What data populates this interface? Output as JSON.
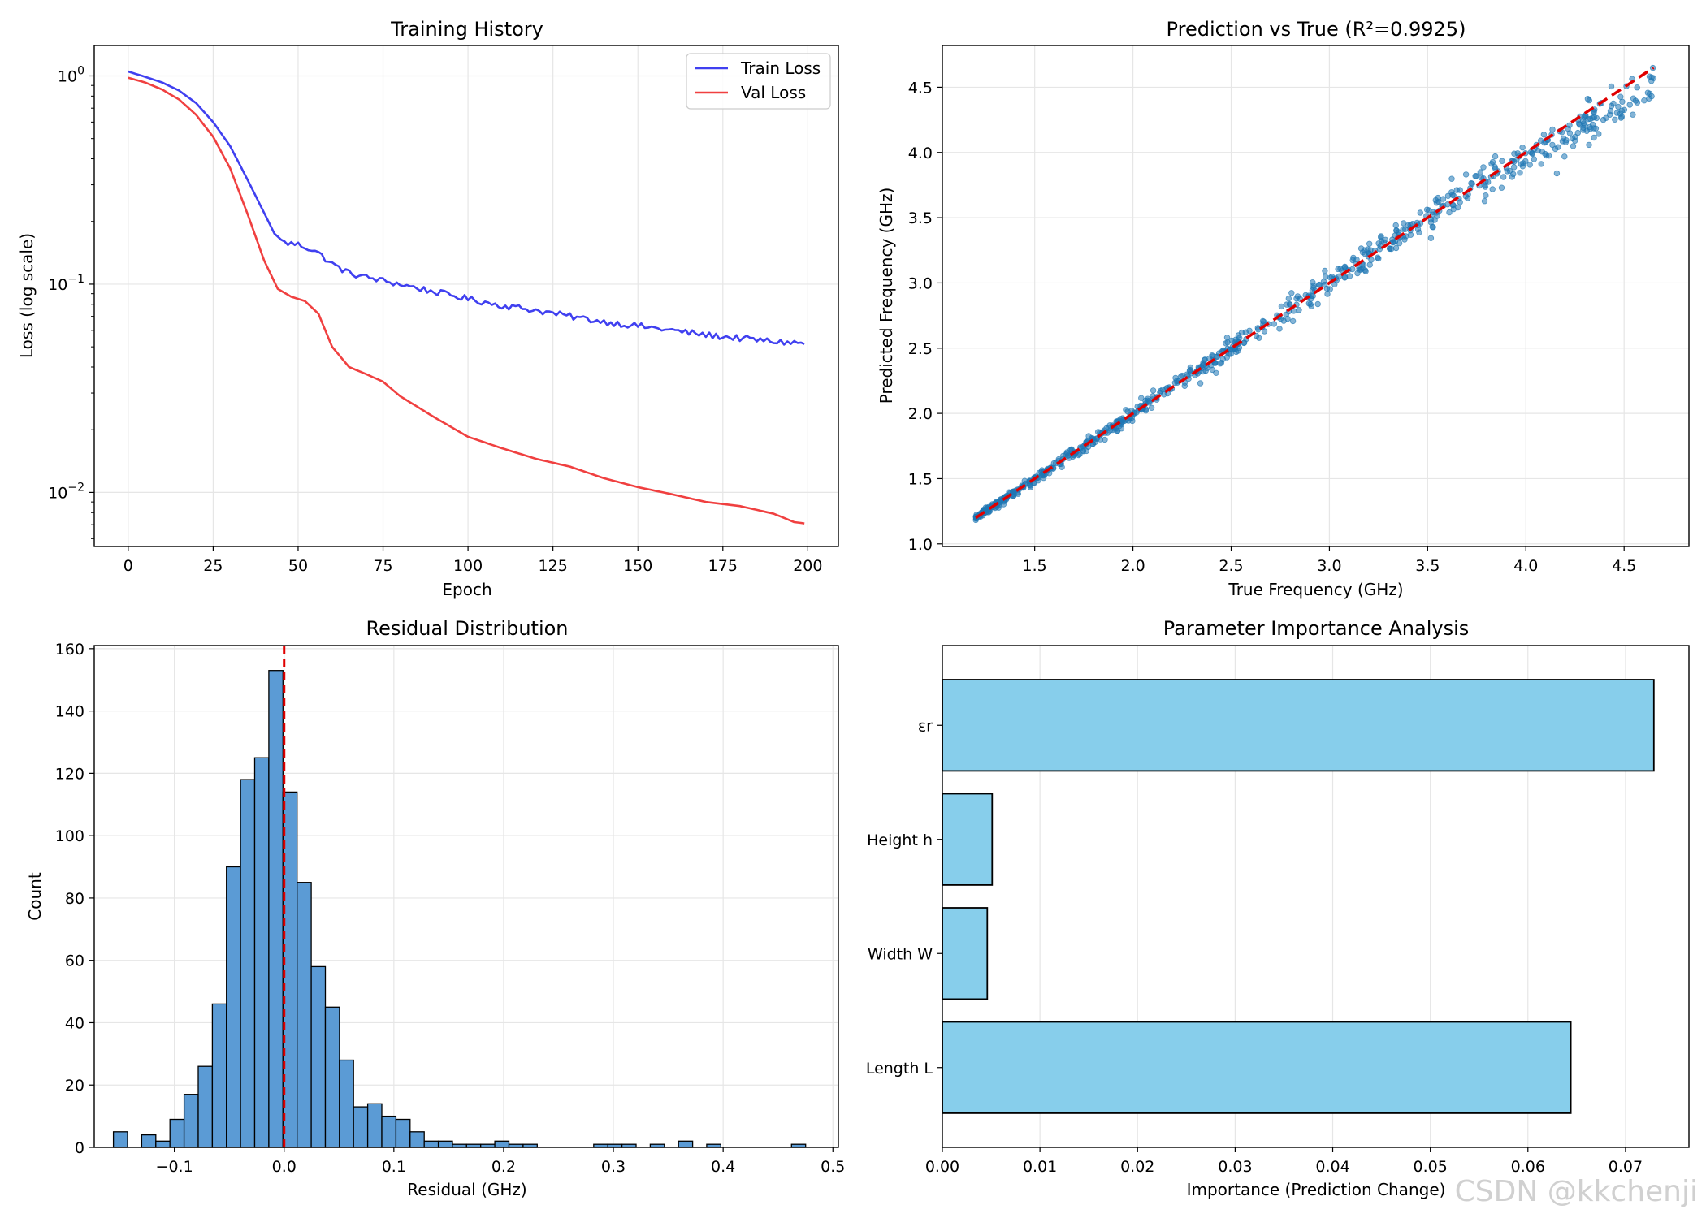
{
  "watermark": "CSDN @kkchenji",
  "chart_data": [
    {
      "type": "line",
      "title": "Training History",
      "xlabel": "Epoch",
      "ylabel": "Loss (log scale)",
      "yscale": "log",
      "xlim": [
        -10,
        209
      ],
      "ylim": [
        0.0055,
        1.4
      ],
      "xticks": [
        0,
        25,
        50,
        75,
        100,
        125,
        150,
        175,
        200
      ],
      "ytick_labels": [
        {
          "base": "10",
          "exp": "0",
          "value": 1
        },
        {
          "base": "10",
          "exp": "−1",
          "value": 0.1
        },
        {
          "base": "10",
          "exp": "−2",
          "value": 0.01
        }
      ],
      "legend": {
        "position": "top-right",
        "entries": [
          "Train Loss",
          "Val Loss"
        ]
      },
      "series": [
        {
          "name": "Train Loss",
          "color": "#4040f0",
          "points": [
            [
              0,
              1.05
            ],
            [
              5,
              0.99
            ],
            [
              10,
              0.93
            ],
            [
              15,
              0.85
            ],
            [
              20,
              0.74
            ],
            [
              25,
              0.6
            ],
            [
              30,
              0.46
            ],
            [
              35,
              0.32
            ],
            [
              40,
              0.22
            ],
            [
              43,
              0.175
            ],
            [
              46,
              0.158
            ],
            [
              50,
              0.155
            ],
            [
              55,
              0.145
            ],
            [
              60,
              0.125
            ],
            [
              65,
              0.113
            ],
            [
              70,
              0.108
            ],
            [
              80,
              0.1
            ],
            [
              90,
              0.092
            ],
            [
              100,
              0.085
            ],
            [
              110,
              0.079
            ],
            [
              120,
              0.075
            ],
            [
              130,
              0.07
            ],
            [
              140,
              0.066
            ],
            [
              150,
              0.063
            ],
            [
              160,
              0.06
            ],
            [
              170,
              0.057
            ],
            [
              180,
              0.055
            ],
            [
              190,
              0.053
            ],
            [
              199,
              0.052
            ]
          ],
          "noise": 0.035
        },
        {
          "name": "Val Loss",
          "color": "#f04040",
          "points": [
            [
              0,
              0.98
            ],
            [
              5,
              0.93
            ],
            [
              10,
              0.86
            ],
            [
              15,
              0.77
            ],
            [
              20,
              0.65
            ],
            [
              25,
              0.51
            ],
            [
              30,
              0.36
            ],
            [
              35,
              0.22
            ],
            [
              40,
              0.13
            ],
            [
              44,
              0.095
            ],
            [
              48,
              0.087
            ],
            [
              52,
              0.083
            ],
            [
              56,
              0.072
            ],
            [
              60,
              0.05
            ],
            [
              65,
              0.04
            ],
            [
              70,
              0.037
            ],
            [
              75,
              0.034
            ],
            [
              80,
              0.029
            ],
            [
              90,
              0.023
            ],
            [
              100,
              0.0185
            ],
            [
              110,
              0.0163
            ],
            [
              120,
              0.0145
            ],
            [
              130,
              0.0133
            ],
            [
              140,
              0.0117
            ],
            [
              150,
              0.0106
            ],
            [
              160,
              0.0098
            ],
            [
              170,
              0.009
            ],
            [
              180,
              0.0086
            ],
            [
              190,
              0.0079
            ],
            [
              196,
              0.0072
            ],
            [
              199,
              0.0071
            ]
          ],
          "noise": 0
        }
      ]
    },
    {
      "type": "scatter",
      "title": "Prediction vs True (R²=0.9925)",
      "xlabel": "True Frequency (GHz)",
      "ylabel": "Predicted Frequency (GHz)",
      "xlim": [
        1.03,
        4.83
      ],
      "ylim": [
        0.98,
        4.82
      ],
      "xticks": [
        "1.5",
        "2.0",
        "2.5",
        "3.0",
        "3.5",
        "4.0",
        "4.5"
      ],
      "yticks": [
        "1.0",
        "1.5",
        "2.0",
        "2.5",
        "3.0",
        "3.5",
        "4.0",
        "4.5"
      ],
      "reference_line": {
        "from": [
          1.2,
          1.2
        ],
        "to": [
          4.65,
          4.65
        ],
        "color": "#e00000",
        "style": "dashed"
      },
      "n_points": 720,
      "x_range": [
        1.2,
        4.65
      ],
      "point_color": "#1f77b4"
    },
    {
      "type": "bar",
      "title": "Residual Distribution",
      "xlabel": "Residual (GHz)",
      "ylabel": "Count",
      "xlim": [
        -0.173,
        0.505
      ],
      "ylim": [
        0,
        161
      ],
      "xticks": [
        "−0.1",
        "0.0",
        "0.1",
        "0.2",
        "0.3",
        "0.4",
        "0.5"
      ],
      "xtick_values": [
        -0.1,
        0,
        0.1,
        0.2,
        0.3,
        0.4,
        0.5
      ],
      "yticks": [
        "0",
        "20",
        "40",
        "60",
        "80",
        "100",
        "120",
        "140",
        "160"
      ],
      "bin_start": -0.1555,
      "bin_width": 0.01287,
      "counts": [
        5,
        0,
        4,
        2,
        9,
        17,
        26,
        46,
        90,
        118,
        125,
        153,
        114,
        85,
        58,
        45,
        28,
        13,
        14,
        10,
        9,
        5,
        2,
        2,
        1,
        1,
        1,
        2,
        1,
        1,
        0,
        0,
        0,
        0,
        1,
        1,
        1,
        0,
        1,
        0,
        2,
        0,
        1,
        0,
        0,
        0,
        0,
        0,
        1
      ],
      "vline": {
        "x": 0,
        "color": "#e00000",
        "style": "dashed"
      },
      "bar_color": "#5b9bd5"
    },
    {
      "type": "bar",
      "orientation": "horizontal",
      "title": "Parameter Importance Analysis",
      "xlabel": "Importance (Prediction Change)",
      "xlim": [
        0,
        0.0765
      ],
      "xticks": [
        "0.00",
        "0.01",
        "0.02",
        "0.03",
        "0.04",
        "0.05",
        "0.06",
        "0.07"
      ],
      "categories": [
        "εr",
        "Height h",
        "Width W",
        "Length L"
      ],
      "values": [
        0.0729,
        0.0051,
        0.0046,
        0.0644
      ],
      "bar_color": "#87ceeb"
    }
  ]
}
